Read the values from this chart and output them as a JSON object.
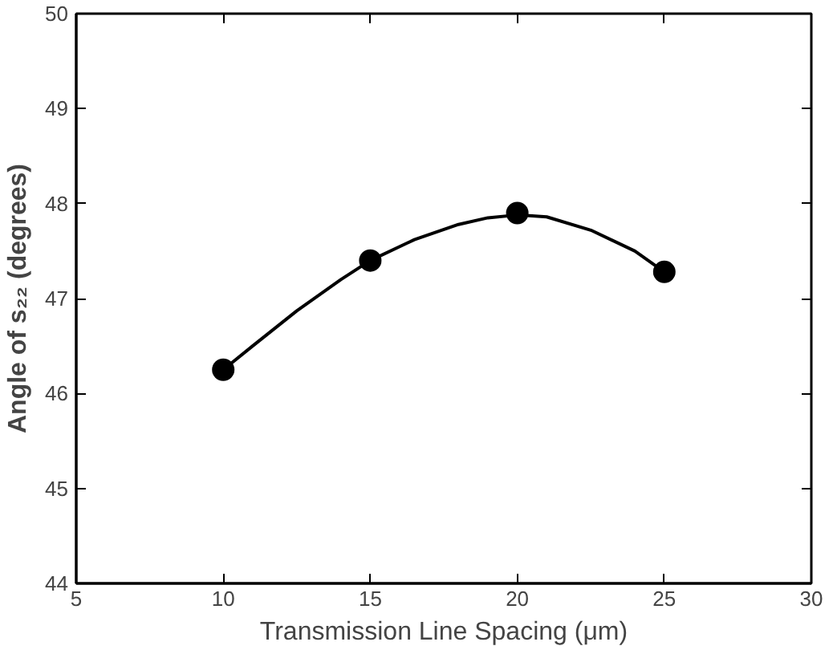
{
  "chart_data": {
    "type": "scatter",
    "xlabel": "Transmission Line Spacing (μm)",
    "ylabel": "Angle of s₂₂ (degrees)",
    "xlim": [
      5,
      30
    ],
    "ylim": [
      44,
      50
    ],
    "xticks": [
      5,
      10,
      15,
      20,
      25,
      30
    ],
    "yticks": [
      44,
      45,
      46,
      47,
      48,
      49,
      50
    ],
    "grid": false,
    "series": [
      {
        "type": "line",
        "color": "#000000",
        "line_style": "solid",
        "marker": "none",
        "x": [
          10,
          11,
          12.5,
          14,
          15,
          16.5,
          18,
          19,
          20,
          21,
          22.5,
          24,
          25
        ],
        "values": [
          46.25,
          46.5,
          46.87,
          47.2,
          47.4,
          47.62,
          47.78,
          47.85,
          47.88,
          47.86,
          47.72,
          47.5,
          47.28
        ]
      },
      {
        "color": "#000000",
        "marker": "circle",
        "x": [
          10,
          15,
          20,
          25
        ],
        "values": [
          46.25,
          47.4,
          47.9,
          47.28
        ]
      }
    ]
  }
}
